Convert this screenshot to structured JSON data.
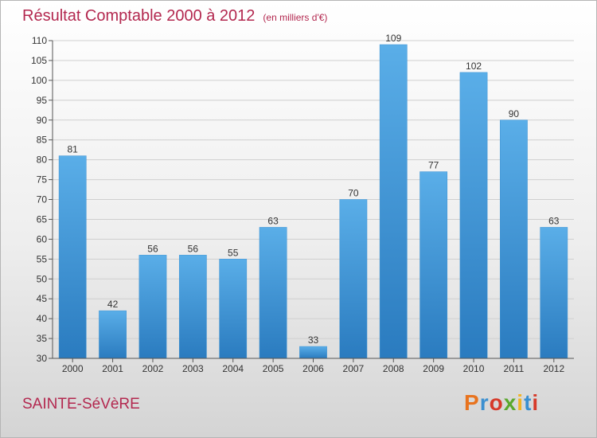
{
  "header": {
    "title": "Résultat Comptable 2000 à 2012",
    "subtitle": "(en milliers d'€)"
  },
  "footer": {
    "place": "SAINTE-SéVèRE",
    "logo": "Proxiti",
    "logo_colors": [
      "#e8731e",
      "#3a8fd0",
      "#d63a2a",
      "#5aa82e",
      "#f2b324",
      "#3a8fd0",
      "#d63a2a"
    ]
  },
  "chart_data": {
    "type": "bar",
    "title": "Résultat Comptable 2000 à 2012",
    "subtitle": "(en milliers d'€)",
    "categories": [
      "2000",
      "2001",
      "2002",
      "2003",
      "2004",
      "2005",
      "2006",
      "2007",
      "2008",
      "2009",
      "2010",
      "2011",
      "2012"
    ],
    "values": [
      81,
      42,
      56,
      56,
      55,
      63,
      33,
      70,
      109,
      77,
      102,
      90,
      63
    ],
    "ylim": [
      30,
      110
    ],
    "yticks": [
      30,
      35,
      40,
      45,
      50,
      55,
      60,
      65,
      70,
      75,
      80,
      85,
      90,
      95,
      100,
      105,
      110
    ],
    "grid": true,
    "bar_color_top": "#5aaee8",
    "bar_color_bottom": "#2a7bbf"
  }
}
